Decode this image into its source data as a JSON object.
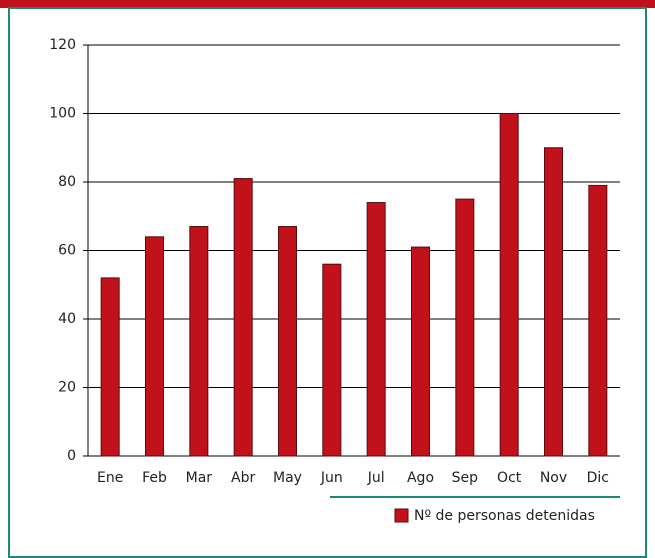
{
  "chart_data": {
    "type": "bar",
    "categories": [
      "Ene",
      "Feb",
      "Mar",
      "Abr",
      "May",
      "Jun",
      "Jul",
      "Ago",
      "Sep",
      "Oct",
      "Nov",
      "Dic"
    ],
    "series": [
      {
        "name": "Nº de personas detenidas",
        "color": "#c1121c",
        "values": [
          52,
          64,
          67,
          81,
          67,
          56,
          74,
          61,
          75,
          100,
          90,
          79
        ]
      }
    ],
    "ylim": [
      0,
      120
    ],
    "yticks": [
      0,
      20,
      40,
      60,
      80,
      100,
      120
    ],
    "grid": true,
    "legend": "bottom-right"
  }
}
